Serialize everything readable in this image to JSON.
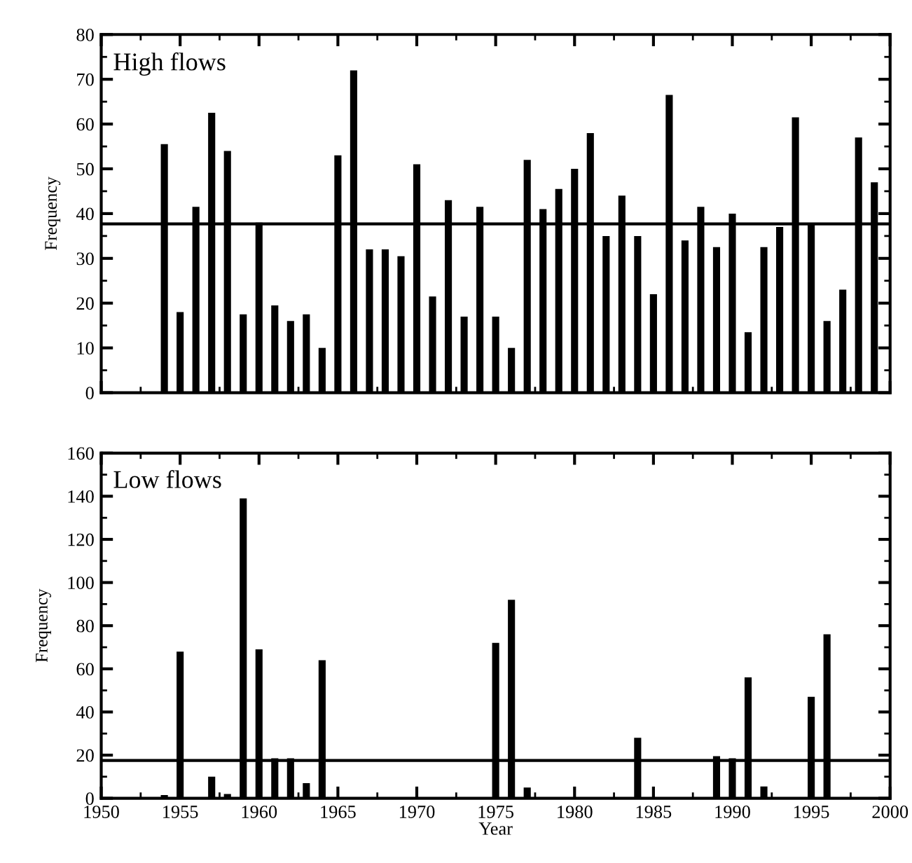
{
  "chart_data": [
    {
      "type": "bar",
      "title": "High flows",
      "ylabel": "Frequency",
      "color": "#000000",
      "tick_labels": "y",
      "x": [
        1954,
        1955,
        1956,
        1957,
        1958,
        1959,
        1960,
        1961,
        1962,
        1963,
        1964,
        1965,
        1966,
        1967,
        1968,
        1969,
        1970,
        1971,
        1972,
        1973,
        1974,
        1975,
        1976,
        1977,
        1978,
        1979,
        1980,
        1981,
        1982,
        1983,
        1984,
        1985,
        1986,
        1987,
        1988,
        1989,
        1990,
        1991,
        1992,
        1993,
        1994,
        1995,
        1996,
        1997,
        1998,
        1999
      ],
      "values": [
        55.5,
        18,
        41.5,
        62.5,
        54,
        17.5,
        38,
        19.5,
        16,
        17.5,
        10,
        53,
        72,
        32,
        32,
        30.5,
        51,
        21.5,
        43,
        17,
        41.5,
        17,
        10,
        52,
        41,
        45.5,
        50,
        58,
        35,
        44,
        35,
        22,
        66.5,
        34,
        41.5,
        32.5,
        40,
        13.5,
        32.5,
        37,
        61.5,
        37.5,
        16,
        23,
        57,
        47
      ],
      "xlim": [
        1950,
        2000
      ],
      "xticks": [
        1950,
        1955,
        1960,
        1965,
        1970,
        1975,
        1980,
        1985,
        1990,
        1995,
        2000
      ],
      "ylim": [
        0,
        80
      ],
      "yticks": [
        0,
        10,
        20,
        30,
        40,
        50,
        60,
        70,
        80
      ],
      "ref_lines": [
        {
          "axis": "y",
          "value": 37.7,
          "color": "#000000"
        }
      ]
    },
    {
      "type": "bar",
      "title": "Low flows",
      "xlabel": "Year",
      "ylabel": "Frequency",
      "color": "#000000",
      "x": [
        1954,
        1955,
        1957,
        1958,
        1959,
        1960,
        1961,
        1962,
        1963,
        1964,
        1975,
        1976,
        1977,
        1984,
        1989,
        1990,
        1991,
        1992,
        1995,
        1996
      ],
      "values": [
        1.5,
        68,
        10,
        2,
        139,
        69,
        18.5,
        18.5,
        7,
        64,
        72,
        92,
        5,
        28,
        19.5,
        18.5,
        56,
        5.5,
        47,
        76
      ],
      "xlim": [
        1950,
        2000
      ],
      "xticks": [
        1950,
        1955,
        1960,
        1965,
        1970,
        1975,
        1980,
        1985,
        1990,
        1995,
        2000
      ],
      "ylim": [
        0,
        160
      ],
      "yticks": [
        0,
        20,
        40,
        60,
        80,
        100,
        120,
        140,
        160
      ],
      "ref_lines": [
        {
          "axis": "y",
          "value": 17.5,
          "color": "#000000"
        }
      ]
    }
  ]
}
